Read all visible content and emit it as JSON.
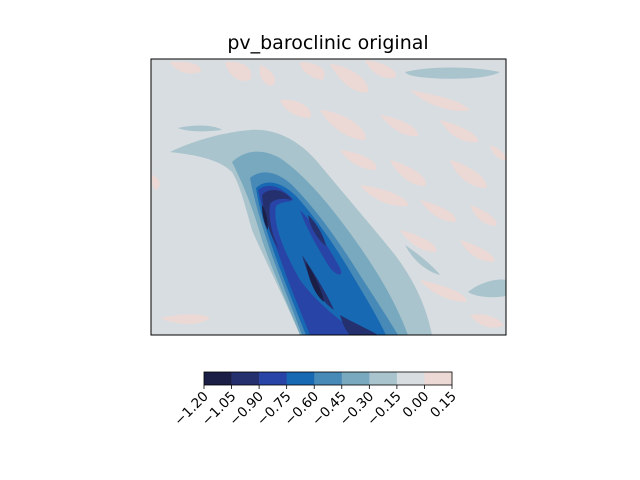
{
  "chart_data": {
    "type": "contourf",
    "title": "pv_baroclinic original",
    "xlabel": "",
    "ylabel": "",
    "x_ticks": [],
    "y_ticks": [],
    "colormap": "blue (negative) to light pink (positive)",
    "colorbar": {
      "orientation": "horizontal",
      "position": "bottom",
      "levels": [
        -1.2,
        -1.05,
        -0.9,
        -0.75,
        -0.6,
        -0.45,
        -0.3,
        -0.15,
        0.0,
        0.15
      ],
      "tick_labels": [
        "−1.20",
        "−1.05",
        "−0.90",
        "−0.75",
        "−0.60",
        "−0.45",
        "−0.30",
        "−0.15",
        "0.00",
        "0.15"
      ],
      "colors": [
        "#1c1f45",
        "#25306e",
        "#2844a6",
        "#1769b3",
        "#4789b7",
        "#78a9bf",
        "#a9c4cd",
        "#d8dde1",
        "#ecd8d4"
      ]
    },
    "background_value_color": "#d8dde1",
    "features": {
      "main_band": "elongated negative band oriented from upper-left to lower-right, minimum below -1.05",
      "scattered_patches": "small positive (0.00 to 0.15) streaks across the upper half"
    }
  }
}
